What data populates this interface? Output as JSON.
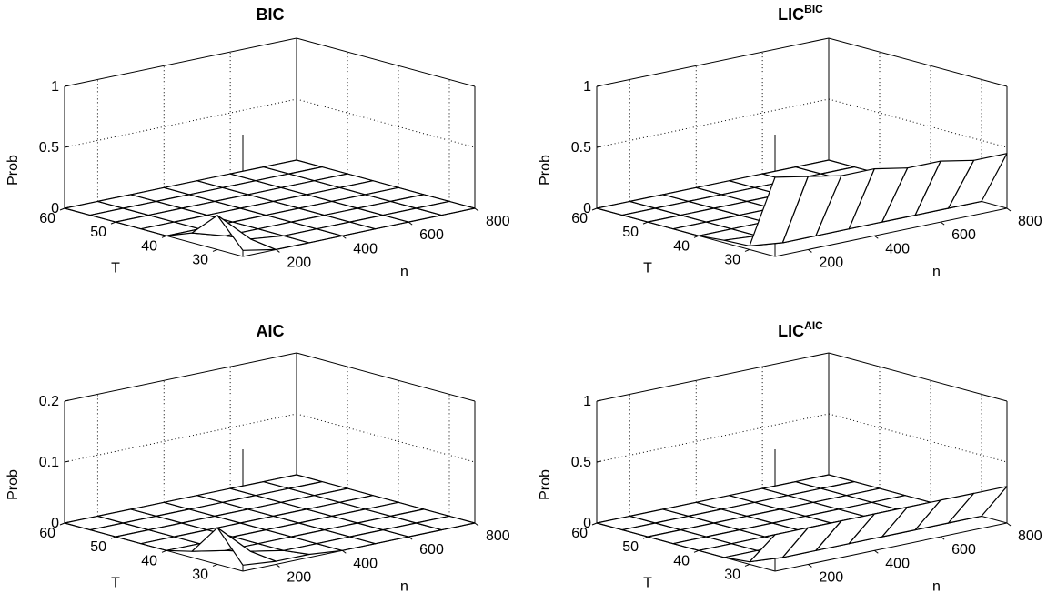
{
  "chart_data": [
    {
      "type": "surface",
      "title": "BIC",
      "title_sup": "",
      "xlabel": "n",
      "ylabel": "T",
      "zlabel": "Prob",
      "xlim": [
        100,
        800
      ],
      "ylim": [
        25,
        60
      ],
      "zlim": [
        0,
        1
      ],
      "x_ticks": [
        200,
        400,
        600,
        800
      ],
      "y_ticks": [
        30,
        40,
        50,
        60
      ],
      "z_ticks": [
        "0",
        "0.5",
        "1"
      ],
      "z_tick_values": [
        0,
        0.5,
        1
      ],
      "grid": true,
      "x": [
        100,
        200,
        300,
        400,
        500,
        600,
        700,
        800
      ],
      "y": [
        25,
        30,
        35,
        40,
        45,
        50,
        55,
        60
      ],
      "z": [
        [
          0.05,
          0.0,
          0.0,
          0.0,
          0.0,
          0.0,
          0.0,
          0.0
        ],
        [
          0.28,
          0.03,
          0.0,
          0.0,
          0.0,
          0.0,
          0.0,
          0.0
        ],
        [
          0.08,
          0.0,
          0.0,
          0.0,
          0.0,
          0.0,
          0.0,
          0.0
        ],
        [
          0.0,
          0.0,
          0.0,
          0.0,
          0.0,
          0.0,
          0.0,
          0.0
        ],
        [
          0.0,
          0.0,
          0.0,
          0.0,
          0.0,
          0.0,
          0.0,
          0.0
        ],
        [
          0.0,
          0.0,
          0.0,
          0.0,
          0.0,
          0.0,
          0.0,
          0.0
        ],
        [
          0.0,
          0.0,
          0.0,
          0.0,
          0.0,
          0.0,
          0.0,
          0.0
        ],
        [
          0.0,
          0.0,
          0.0,
          0.0,
          0.0,
          0.0,
          0.0,
          0.0
        ]
      ]
    },
    {
      "type": "surface",
      "title": "LIC",
      "title_sup": "BIC",
      "xlabel": "n",
      "ylabel": "T",
      "zlabel": "Prob",
      "xlim": [
        100,
        800
      ],
      "ylim": [
        25,
        60
      ],
      "zlim": [
        0,
        1
      ],
      "x_ticks": [
        200,
        400,
        600,
        800
      ],
      "y_ticks": [
        30,
        40,
        50,
        60
      ],
      "z_ticks": [
        "0",
        "0.5",
        "1"
      ],
      "z_tick_values": [
        0,
        0.5,
        1
      ],
      "grid": true,
      "x": [
        100,
        200,
        300,
        400,
        500,
        600,
        700,
        800
      ],
      "y": [
        25,
        30,
        35,
        40,
        45,
        50,
        55,
        60
      ],
      "z": [
        [
          0.65,
          0.6,
          0.55,
          0.55,
          0.5,
          0.5,
          0.45,
          0.45
        ],
        [
          0.03,
          0.0,
          0.0,
          0.0,
          0.0,
          0.0,
          0.0,
          0.0
        ],
        [
          0.02,
          0.0,
          0.0,
          0.0,
          0.0,
          0.0,
          0.0,
          0.0
        ],
        [
          0.0,
          0.0,
          0.0,
          0.0,
          0.0,
          0.0,
          0.0,
          0.0
        ],
        [
          0.0,
          0.0,
          0.0,
          0.0,
          0.0,
          0.0,
          0.0,
          0.0
        ],
        [
          0.0,
          0.0,
          0.0,
          0.0,
          0.0,
          0.0,
          0.0,
          0.0
        ],
        [
          0.0,
          0.0,
          0.0,
          0.0,
          0.0,
          0.0,
          0.0,
          0.0
        ],
        [
          0.0,
          0.0,
          0.0,
          0.0,
          0.0,
          0.0,
          0.0,
          0.0
        ]
      ]
    },
    {
      "type": "surface",
      "title": "AIC",
      "title_sup": "",
      "xlabel": "n",
      "ylabel": "T",
      "zlabel": "Prob",
      "xlim": [
        100,
        800
      ],
      "ylim": [
        25,
        60
      ],
      "zlim": [
        0,
        0.2
      ],
      "x_ticks": [
        200,
        400,
        600,
        800
      ],
      "y_ticks": [
        30,
        40,
        50,
        60
      ],
      "z_ticks": [
        "0",
        "0.1",
        "0.2"
      ],
      "z_tick_values": [
        0,
        0.1,
        0.2
      ],
      "grid": true,
      "x": [
        100,
        200,
        300,
        400,
        500,
        600,
        700,
        800
      ],
      "y": [
        25,
        30,
        35,
        40,
        45,
        50,
        55,
        60
      ],
      "z": [
        [
          0.01,
          0.005,
          0.005,
          0.0,
          0.0,
          0.0,
          0.0,
          0.0
        ],
        [
          0.06,
          0.01,
          0.0,
          0.0,
          0.0,
          0.0,
          0.0,
          0.0
        ],
        [
          0.01,
          0.0,
          0.0,
          0.0,
          0.0,
          0.0,
          0.0,
          0.0
        ],
        [
          0.0,
          0.0,
          0.0,
          0.0,
          0.0,
          0.0,
          0.0,
          0.0
        ],
        [
          0.0,
          0.0,
          0.0,
          0.0,
          0.0,
          0.0,
          0.0,
          0.0
        ],
        [
          0.0,
          0.0,
          0.0,
          0.0,
          0.0,
          0.0,
          0.0,
          0.0
        ],
        [
          0.0,
          0.0,
          0.0,
          0.0,
          0.0,
          0.0,
          0.0,
          0.0
        ],
        [
          0.0,
          0.0,
          0.0,
          0.0,
          0.0,
          0.0,
          0.0,
          0.0
        ]
      ]
    },
    {
      "type": "surface",
      "title": "LIC",
      "title_sup": "AIC",
      "xlabel": "n",
      "ylabel": "T",
      "zlabel": "Prob",
      "xlim": [
        100,
        800
      ],
      "ylim": [
        25,
        60
      ],
      "zlim": [
        0,
        1
      ],
      "x_ticks": [
        200,
        400,
        600,
        800
      ],
      "y_ticks": [
        30,
        40,
        50,
        60
      ],
      "z_ticks": [
        "0",
        "0.5",
        "1"
      ],
      "z_tick_values": [
        0,
        0.5,
        1
      ],
      "grid": true,
      "x": [
        100,
        200,
        300,
        400,
        500,
        600,
        700,
        800
      ],
      "y": [
        25,
        30,
        35,
        40,
        45,
        50,
        55,
        60
      ],
      "z": [
        [
          0.3,
          0.3,
          0.3,
          0.3,
          0.3,
          0.3,
          0.3,
          0.3
        ],
        [
          0.02,
          0.0,
          0.0,
          0.0,
          0.0,
          0.0,
          0.0,
          0.0
        ],
        [
          0.0,
          0.0,
          0.0,
          0.0,
          0.0,
          0.0,
          0.0,
          0.0
        ],
        [
          0.0,
          0.0,
          0.0,
          0.0,
          0.0,
          0.0,
          0.0,
          0.0
        ],
        [
          0.0,
          0.0,
          0.0,
          0.0,
          0.0,
          0.0,
          0.0,
          0.0
        ],
        [
          0.0,
          0.0,
          0.0,
          0.0,
          0.0,
          0.0,
          0.0,
          0.0
        ],
        [
          0.0,
          0.0,
          0.0,
          0.0,
          0.0,
          0.0,
          0.0,
          0.0
        ],
        [
          0.0,
          0.0,
          0.0,
          0.0,
          0.0,
          0.0,
          0.0,
          0.0
        ]
      ]
    }
  ]
}
